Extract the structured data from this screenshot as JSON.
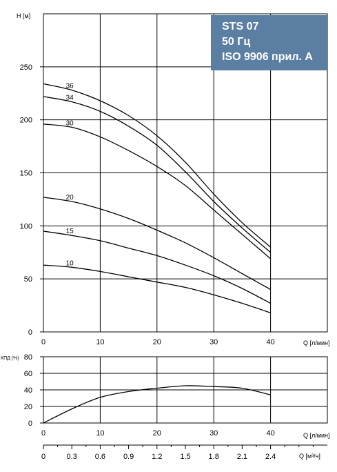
{
  "title_box": {
    "line1": "STS 07",
    "line2": "50 Гц",
    "line3": "ISO 9906 прил. A"
  },
  "chart_data": [
    {
      "type": "line",
      "name": "head",
      "ylabel": "H [м]",
      "xlabel": "Q [л/мин]",
      "xlim": [
        0,
        50
      ],
      "ylim": [
        0,
        300
      ],
      "xticks": [
        0,
        10,
        20,
        30,
        40
      ],
      "yticks": [
        0,
        50,
        100,
        150,
        200,
        250
      ],
      "grid": true,
      "series": [
        {
          "name": "36",
          "x": [
            0,
            5,
            10,
            15,
            20,
            25,
            30,
            35,
            40
          ],
          "y": [
            234,
            228,
            218,
            204,
            185,
            160,
            130,
            103,
            80
          ]
        },
        {
          "name": "34",
          "x": [
            0,
            5,
            10,
            15,
            20,
            25,
            30,
            35,
            40
          ],
          "y": [
            222,
            217,
            208,
            194,
            176,
            151,
            123,
            98,
            75
          ]
        },
        {
          "name": "30",
          "x": [
            0,
            5,
            10,
            15,
            20,
            25,
            30,
            35,
            40
          ],
          "y": [
            196,
            193,
            184,
            171,
            156,
            138,
            115,
            92,
            69
          ]
        },
        {
          "name": "20",
          "x": [
            0,
            5,
            10,
            15,
            20,
            25,
            30,
            35,
            40
          ],
          "y": [
            127,
            123,
            116,
            107,
            96,
            84,
            70,
            55,
            40
          ]
        },
        {
          "name": "15",
          "x": [
            0,
            5,
            10,
            15,
            20,
            25,
            30,
            35,
            40
          ],
          "y": [
            95,
            91,
            86,
            79,
            72,
            63,
            53,
            41,
            27
          ]
        },
        {
          "name": "10",
          "x": [
            0,
            5,
            10,
            15,
            20,
            25,
            30,
            35,
            40
          ],
          "y": [
            63,
            61,
            57,
            52,
            47,
            42,
            35,
            27,
            18
          ]
        }
      ]
    },
    {
      "type": "line",
      "name": "efficiency",
      "ylabel": "КПД (%)",
      "xlabel": "Q [л/мин]",
      "xlim": [
        0,
        50
      ],
      "ylim": [
        0,
        80
      ],
      "xticks": [
        0,
        10,
        20,
        30,
        40
      ],
      "yticks": [
        0,
        20,
        40,
        60,
        80
      ],
      "grid": true,
      "series": [
        {
          "x": [
            0,
            5,
            10,
            15,
            20,
            25,
            30,
            35,
            40
          ],
          "y": [
            0,
            17,
            31,
            38,
            42,
            45,
            44,
            42,
            34
          ]
        }
      ]
    },
    {
      "type": "axis",
      "name": "flow-m3h",
      "xlabel": "Q [м³/ч]",
      "xticks": [
        "0",
        "0.3",
        "0.6",
        "0.9",
        "1.2",
        "1.5",
        "1.8",
        "2.1",
        "2.4"
      ]
    }
  ]
}
